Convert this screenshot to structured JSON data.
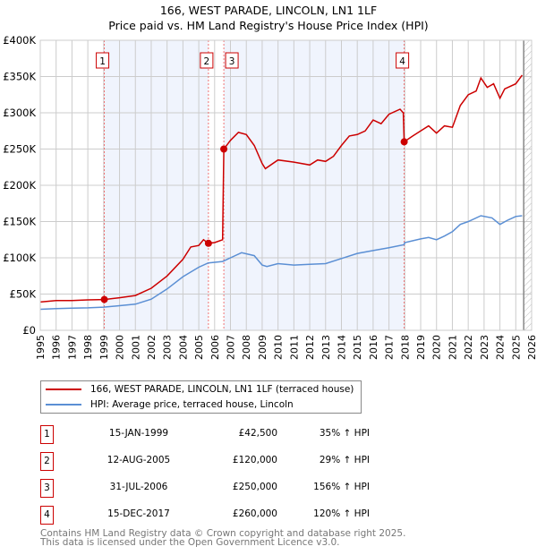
{
  "chart_data": {
    "type": "line",
    "title": "166, WEST PARADE, LINCOLN, LN1 1LF",
    "subtitle": "Price paid vs. HM Land Registry's House Price Index (HPI)",
    "xlim": [
      1995,
      2026
    ],
    "ylim": [
      0,
      400000
    ],
    "y_ticks": [
      {
        "v": 0,
        "label": "£0"
      },
      {
        "v": 50000,
        "label": "£50K"
      },
      {
        "v": 100000,
        "label": "£100K"
      },
      {
        "v": 150000,
        "label": "£150K"
      },
      {
        "v": 200000,
        "label": "£200K"
      },
      {
        "v": 250000,
        "label": "£250K"
      },
      {
        "v": 300000,
        "label": "£300K"
      },
      {
        "v": 350000,
        "label": "£350K"
      },
      {
        "v": 400000,
        "label": "£400K"
      }
    ],
    "x_ticks": [
      "1995",
      "1996",
      "1997",
      "1998",
      "1999",
      "2000",
      "2001",
      "2002",
      "2003",
      "2004",
      "2005",
      "2006",
      "2007",
      "2008",
      "2009",
      "2010",
      "2011",
      "2012",
      "2013",
      "2014",
      "2015",
      "2016",
      "2017",
      "2018",
      "2019",
      "2020",
      "2021",
      "2022",
      "2023",
      "2024",
      "2025",
      "2026"
    ],
    "grid": true,
    "shaded_ranges": [
      [
        1999.04,
        2005.61
      ],
      [
        2006.58,
        2017.96
      ]
    ],
    "forecast_hatch_from": 2025.5,
    "series": [
      {
        "name": "166, WEST PARADE, LINCOLN, LN1 1LF (terraced house)",
        "color": "#cc0000",
        "x": [
          1995,
          1996,
          1997,
          1998,
          1999.04,
          2000,
          2001,
          2002,
          2003,
          2004,
          2004.5,
          2005,
          2005.3,
          2005.61,
          2006,
          2006.5,
          2006.58,
          2007,
          2007.5,
          2008,
          2008.5,
          2009,
          2009.2,
          2010,
          2011,
          2012,
          2012.5,
          2013,
          2013.5,
          2014,
          2014.5,
          2015,
          2015.5,
          2016,
          2016.5,
          2017,
          2017.7,
          2017.9,
          2017.96,
          2018.5,
          2019,
          2019.5,
          2020,
          2020.5,
          2021,
          2021.5,
          2022,
          2022.5,
          2022.8,
          2023.2,
          2023.6,
          2024,
          2024.3,
          2025,
          2025.4
        ],
        "y": [
          39000,
          41000,
          41000,
          42000,
          42500,
          45000,
          48000,
          58000,
          75000,
          98000,
          115000,
          117000,
          125000,
          120000,
          121000,
          125000,
          250000,
          262000,
          273000,
          270000,
          255000,
          230000,
          223000,
          235000,
          232000,
          228000,
          235000,
          233000,
          240000,
          255000,
          268000,
          270000,
          275000,
          290000,
          285000,
          298000,
          305000,
          300000,
          260000,
          268000,
          275000,
          282000,
          272000,
          282000,
          280000,
          310000,
          325000,
          330000,
          348000,
          335000,
          340000,
          320000,
          333000,
          340000,
          352000
        ]
      },
      {
        "name": "HPI: Average price, terraced house, Lincoln",
        "color": "#5b8fd4",
        "x": [
          1995,
          1996,
          1997,
          1998,
          1999,
          2000,
          2001,
          2002,
          2003,
          2004,
          2005,
          2005.6,
          2006.5,
          2007,
          2007.7,
          2008.5,
          2009,
          2009.3,
          2010,
          2011,
          2012,
          2013,
          2014,
          2015,
          2016,
          2017,
          2017.95,
          2018,
          2019,
          2019.5,
          2020,
          2020.5,
          2021,
          2021.5,
          2022,
          2022.8,
          2023.5,
          2024,
          2024.5,
          2025,
          2025.4
        ],
        "y": [
          29000,
          30000,
          30500,
          31000,
          32000,
          34000,
          36000,
          43000,
          57000,
          74000,
          87000,
          93000,
          95000,
          100000,
          107000,
          103000,
          90000,
          88000,
          92000,
          90000,
          91000,
          92000,
          99000,
          106000,
          110000,
          114000,
          118000,
          121000,
          126000,
          128000,
          125000,
          130000,
          136000,
          146000,
          150000,
          158000,
          155000,
          146000,
          152000,
          157000,
          158000
        ]
      }
    ],
    "sales": [
      {
        "id": "1",
        "x": 1999.04,
        "y": 42500,
        "date": "15-JAN-1999",
        "price": "£42,500",
        "hpi": "35% ↑ HPI"
      },
      {
        "id": "2",
        "x": 2005.61,
        "y": 120000,
        "date": "12-AUG-2005",
        "price": "£120,000",
        "hpi": "29% ↑ HPI"
      },
      {
        "id": "3",
        "x": 2006.58,
        "y": 250000,
        "date": "31-JUL-2006",
        "price": "£250,000",
        "hpi": "156% ↑ HPI"
      },
      {
        "id": "4",
        "x": 2017.96,
        "y": 260000,
        "date": "15-DEC-2017",
        "price": "£260,000",
        "hpi": "120% ↑ HPI"
      }
    ]
  },
  "footer": {
    "line1": "Contains HM Land Registry data © Crown copyright and database right 2025.",
    "line2": "This data is licensed under the Open Government Licence v3.0."
  }
}
